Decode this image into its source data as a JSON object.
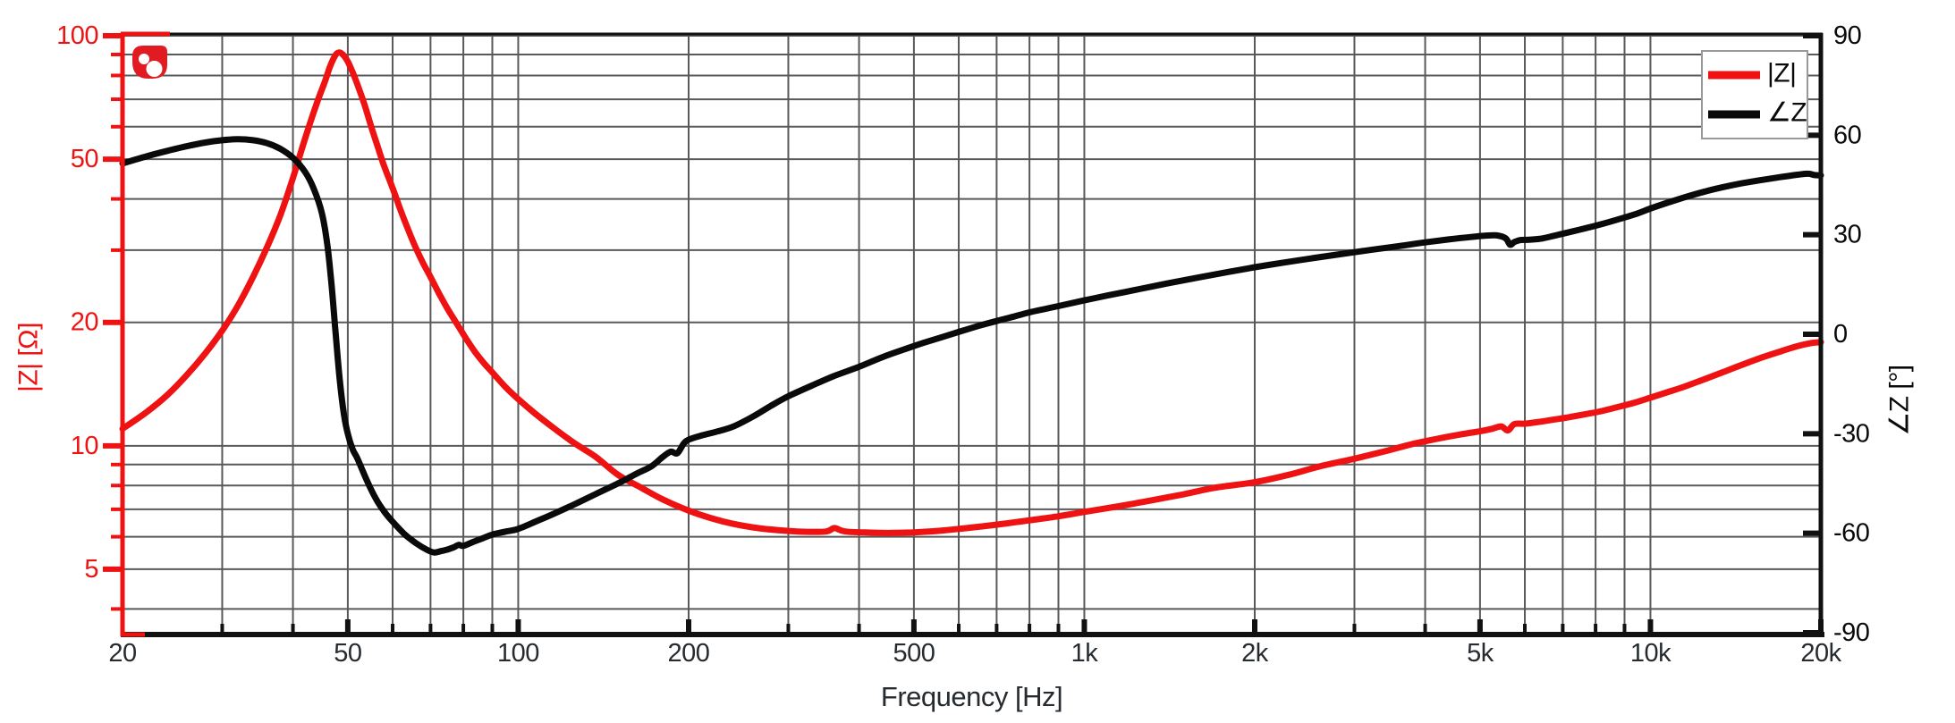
{
  "colors": {
    "magnitude": "#ee1212",
    "phase": "#0a0a0a",
    "grid": "#595959",
    "frame": "#111111",
    "freq_tick_text": "#262b30",
    "legend_border": "#999999",
    "background": "#ffffff",
    "logo_red": "#e11b22"
  },
  "icons": {
    "logo": "red-blob-logo-with-two-white-dots"
  },
  "chart_data": {
    "type": "line",
    "title": "",
    "xlabel": "Frequency [Hz]",
    "ylabel_left": "|Z| [Ω]",
    "ylabel_right": "∠Z [°]",
    "grid": true,
    "x_axis": {
      "scale": "log",
      "min": 20,
      "max": 20000,
      "major_ticks": [
        {
          "value": 20,
          "label": "20"
        },
        {
          "value": 50,
          "label": "50"
        },
        {
          "value": 100,
          "label": "100"
        },
        {
          "value": 200,
          "label": "200"
        },
        {
          "value": 500,
          "label": "500"
        },
        {
          "value": 1000,
          "label": "1k"
        },
        {
          "value": 2000,
          "label": "2k"
        },
        {
          "value": 5000,
          "label": "5k"
        },
        {
          "value": 10000,
          "label": "10k"
        },
        {
          "value": 20000,
          "label": "20k"
        }
      ],
      "minor_ticks": [
        30,
        40,
        60,
        70,
        80,
        90,
        300,
        400,
        600,
        700,
        800,
        900,
        3000,
        4000,
        6000,
        7000,
        8000,
        9000
      ]
    },
    "y_axis_left": {
      "scale": "log",
      "min": 3.5,
      "max": 100,
      "unit": "Ω",
      "major_ticks": [
        {
          "value": 5,
          "label": "5"
        },
        {
          "value": 10,
          "label": "10"
        },
        {
          "value": 20,
          "label": "20"
        },
        {
          "value": 50,
          "label": "50"
        },
        {
          "value": 100,
          "label": "100"
        }
      ],
      "minor_ticks": [
        4,
        6,
        7,
        8,
        9,
        30,
        40,
        60,
        70,
        80,
        90
      ]
    },
    "y_axis_right": {
      "scale": "linear",
      "min": -90,
      "max": 90,
      "unit": "°",
      "ticks": [
        {
          "value": 90,
          "label": "90"
        },
        {
          "value": 60,
          "label": "60"
        },
        {
          "value": 30,
          "label": "30"
        },
        {
          "value": 0,
          "label": "0"
        },
        {
          "value": -30,
          "label": "-30"
        },
        {
          "value": -60,
          "label": "-60"
        },
        {
          "value": -90,
          "label": "-90"
        }
      ]
    },
    "legend": {
      "position": "top-right",
      "entries": [
        {
          "label": "|Z|",
          "color": "#ee1212"
        },
        {
          "label": "∠Z",
          "color": "#0a0a0a"
        }
      ]
    },
    "series": [
      {
        "name": "|Z|",
        "axis": "left",
        "color": "#ee1212",
        "points": [
          [
            20,
            11.0
          ],
          [
            22,
            12.05
          ],
          [
            24,
            13.3
          ],
          [
            26,
            14.9
          ],
          [
            28,
            16.8
          ],
          [
            30,
            19.1
          ],
          [
            32,
            22.0
          ],
          [
            34,
            25.8
          ],
          [
            36,
            30.5
          ],
          [
            38,
            36.5
          ],
          [
            40,
            45
          ],
          [
            42,
            56
          ],
          [
            44,
            68
          ],
          [
            45.5,
            77
          ],
          [
            46.5,
            84
          ],
          [
            47.5,
            89.5
          ],
          [
            48.2,
            91
          ],
          [
            49,
            90
          ],
          [
            50,
            86.5
          ],
          [
            51,
            81.5
          ],
          [
            52,
            76
          ],
          [
            53.5,
            68
          ],
          [
            55,
            60
          ],
          [
            56.5,
            53.5
          ],
          [
            58,
            48
          ],
          [
            60,
            42.5
          ],
          [
            62,
            37.5
          ],
          [
            64,
            33.5
          ],
          [
            66,
            30.3
          ],
          [
            68,
            27.8
          ],
          [
            70,
            25.8
          ],
          [
            72.5,
            23.5
          ],
          [
            75,
            21.6
          ],
          [
            78,
            19.8
          ],
          [
            81,
            18.2
          ],
          [
            84,
            16.9
          ],
          [
            87,
            15.9
          ],
          [
            90,
            15.1
          ],
          [
            95,
            13.9
          ],
          [
            100,
            13.0
          ],
          [
            107,
            12.0
          ],
          [
            115,
            11.1
          ],
          [
            125,
            10.2
          ],
          [
            137,
            9.4
          ],
          [
            150,
            8.5
          ],
          [
            165,
            7.9
          ],
          [
            180,
            7.4
          ],
          [
            200,
            6.95
          ],
          [
            220,
            6.65
          ],
          [
            240,
            6.45
          ],
          [
            265,
            6.3
          ],
          [
            290,
            6.22
          ],
          [
            320,
            6.17
          ],
          [
            350,
            6.18
          ],
          [
            362,
            6.3
          ],
          [
            378,
            6.18
          ],
          [
            420,
            6.14
          ],
          [
            460,
            6.13
          ],
          [
            500,
            6.15
          ],
          [
            550,
            6.2
          ],
          [
            600,
            6.27
          ],
          [
            660,
            6.36
          ],
          [
            730,
            6.47
          ],
          [
            800,
            6.58
          ],
          [
            900,
            6.73
          ],
          [
            1000,
            6.9
          ],
          [
            1150,
            7.12
          ],
          [
            1300,
            7.34
          ],
          [
            1500,
            7.62
          ],
          [
            1700,
            7.9
          ],
          [
            2000,
            8.15
          ],
          [
            2300,
            8.5
          ],
          [
            2600,
            8.9
          ],
          [
            3000,
            9.3
          ],
          [
            3400,
            9.7
          ],
          [
            3800,
            10.1
          ],
          [
            4200,
            10.4
          ],
          [
            4600,
            10.65
          ],
          [
            5000,
            10.85
          ],
          [
            5250,
            11.0
          ],
          [
            5450,
            11.15
          ],
          [
            5600,
            10.9
          ],
          [
            5750,
            11.3
          ],
          [
            6000,
            11.32
          ],
          [
            6400,
            11.45
          ],
          [
            6800,
            11.6
          ],
          [
            7200,
            11.75
          ],
          [
            7700,
            11.95
          ],
          [
            8200,
            12.15
          ],
          [
            8800,
            12.45
          ],
          [
            9400,
            12.75
          ],
          [
            10000,
            13.1
          ],
          [
            10700,
            13.5
          ],
          [
            11500,
            13.95
          ],
          [
            12400,
            14.5
          ],
          [
            13400,
            15.1
          ],
          [
            14500,
            15.75
          ],
          [
            15700,
            16.4
          ],
          [
            17000,
            17.0
          ],
          [
            18200,
            17.5
          ],
          [
            19200,
            17.8
          ],
          [
            20000,
            17.9
          ]
        ]
      },
      {
        "name": "∠Z",
        "axis": "right",
        "color": "#0a0a0a",
        "points": [
          [
            20,
            51.5
          ],
          [
            22,
            53.6
          ],
          [
            24,
            55.3
          ],
          [
            26,
            56.7
          ],
          [
            28,
            57.8
          ],
          [
            30,
            58.5
          ],
          [
            32,
            58.8
          ],
          [
            34,
            58.5
          ],
          [
            36,
            57.6
          ],
          [
            38,
            55.9
          ],
          [
            40,
            53.2
          ],
          [
            42,
            49
          ],
          [
            43.5,
            44
          ],
          [
            45,
            36.5
          ],
          [
            46,
            27
          ],
          [
            46.8,
            15
          ],
          [
            47.6,
            0
          ],
          [
            48.4,
            -14
          ],
          [
            49.2,
            -24
          ],
          [
            50,
            -30
          ],
          [
            51,
            -34.7
          ],
          [
            52,
            -37.5
          ],
          [
            54,
            -44
          ],
          [
            56,
            -49.5
          ],
          [
            58,
            -53.5
          ],
          [
            60,
            -56.5
          ],
          [
            63,
            -60.3
          ],
          [
            66,
            -63
          ],
          [
            69,
            -65
          ],
          [
            71,
            -65.8
          ],
          [
            73,
            -65.4
          ],
          [
            75,
            -64.9
          ],
          [
            77,
            -64.2
          ],
          [
            78.5,
            -63.5
          ],
          [
            80,
            -63.8
          ],
          [
            83,
            -62.7
          ],
          [
            86,
            -61.7
          ],
          [
            90,
            -60.4
          ],
          [
            95,
            -59.5
          ],
          [
            100,
            -58.7
          ],
          [
            108,
            -56.3
          ],
          [
            116,
            -54
          ],
          [
            126,
            -51.2
          ],
          [
            137,
            -48.2
          ],
          [
            150,
            -45
          ],
          [
            162,
            -42
          ],
          [
            172,
            -39.8
          ],
          [
            180,
            -37
          ],
          [
            186,
            -35.4
          ],
          [
            191,
            -35.9
          ],
          [
            196,
            -33
          ],
          [
            200,
            -31.8
          ],
          [
            210,
            -30.6
          ],
          [
            225,
            -29.3
          ],
          [
            240,
            -27.8
          ],
          [
            260,
            -24.8
          ],
          [
            280,
            -21.5
          ],
          [
            300,
            -18.7
          ],
          [
            330,
            -15.5
          ],
          [
            360,
            -12.7
          ],
          [
            400,
            -9.8
          ],
          [
            440,
            -6.9
          ],
          [
            480,
            -4.6
          ],
          [
            520,
            -2.6
          ],
          [
            560,
            -0.9
          ],
          [
            600,
            0.7
          ],
          [
            650,
            2.5
          ],
          [
            700,
            4.0
          ],
          [
            750,
            5.3
          ],
          [
            800,
            6.6
          ],
          [
            900,
            8.5
          ],
          [
            1000,
            10.2
          ],
          [
            1100,
            11.7
          ],
          [
            1250,
            13.6
          ],
          [
            1400,
            15.3
          ],
          [
            1600,
            17.2
          ],
          [
            1800,
            18.8
          ],
          [
            2000,
            20.2
          ],
          [
            2250,
            21.6
          ],
          [
            2500,
            22.8
          ],
          [
            2800,
            24.0
          ],
          [
            3200,
            25.4
          ],
          [
            3600,
            26.6
          ],
          [
            4000,
            27.7
          ],
          [
            4400,
            28.6
          ],
          [
            4800,
            29.3
          ],
          [
            5100,
            29.7
          ],
          [
            5350,
            29.8
          ],
          [
            5550,
            28.9
          ],
          [
            5650,
            27.0
          ],
          [
            5750,
            27.8
          ],
          [
            5900,
            28.4
          ],
          [
            6100,
            28.5
          ],
          [
            6400,
            28.8
          ],
          [
            6800,
            29.8
          ],
          [
            7200,
            30.8
          ],
          [
            7700,
            32.0
          ],
          [
            8200,
            33.2
          ],
          [
            8800,
            34.7
          ],
          [
            9400,
            36.2
          ],
          [
            10000,
            37.9
          ],
          [
            10700,
            39.6
          ],
          [
            11500,
            41.3
          ],
          [
            12400,
            42.9
          ],
          [
            13400,
            44.3
          ],
          [
            14500,
            45.5
          ],
          [
            15700,
            46.5
          ],
          [
            17000,
            47.4
          ],
          [
            18200,
            48.1
          ],
          [
            19000,
            48.4
          ],
          [
            19500,
            48.0
          ],
          [
            20000,
            47.9
          ]
        ]
      }
    ]
  }
}
